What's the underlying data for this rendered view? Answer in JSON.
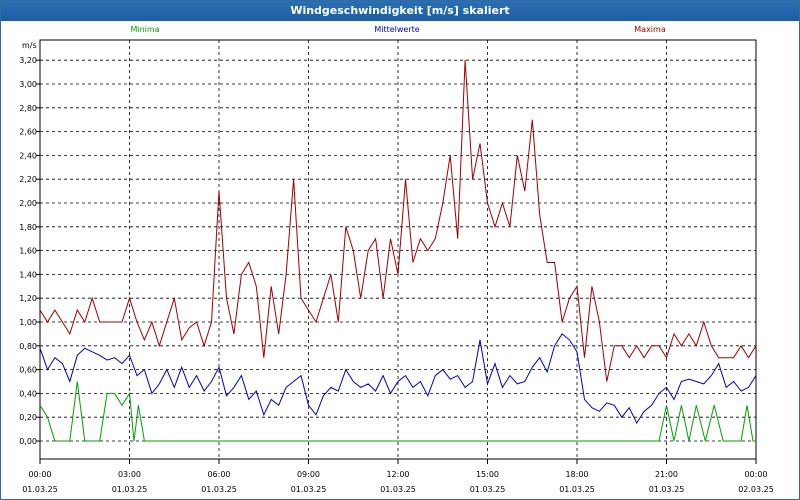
{
  "window": {
    "title": "Windgeschwindigkeit [m/s] skaliert"
  },
  "chart_data": {
    "type": "line",
    "title": "Windgeschwindigkeit [m/s] skaliert",
    "ylabel": "m/s",
    "xlabel": "",
    "ylim": [
      0,
      3.4
    ],
    "xlim": [
      0,
      24
    ],
    "grid": true,
    "yticks": [
      "0,00",
      "0,20",
      "0,40",
      "0,60",
      "0,80",
      "1,00",
      "1,20",
      "1,40",
      "1,60",
      "1,80",
      "2,00",
      "2,20",
      "2,40",
      "2,60",
      "2,80",
      "3,00",
      "3,20"
    ],
    "xticks": [
      {
        "time": "00:00",
        "date": "01.03.25"
      },
      {
        "time": "03:00",
        "date": "01.03.25"
      },
      {
        "time": "06:00",
        "date": "01.03.25"
      },
      {
        "time": "09:00",
        "date": "01.03.25"
      },
      {
        "time": "12:00",
        "date": "01.03.25"
      },
      {
        "time": "15:00",
        "date": "01.03.25"
      },
      {
        "time": "18:00",
        "date": "01.03.25"
      },
      {
        "time": "21:00",
        "date": "01.03.25"
      },
      {
        "time": "00:00",
        "date": "02.03.25"
      }
    ],
    "series": [
      {
        "name": "Minima",
        "color": "#00a000",
        "x": [
          0,
          0.25,
          0.5,
          1,
          1.25,
          1.5,
          2,
          2.25,
          2.5,
          2.75,
          3,
          3.15,
          3.3,
          3.5,
          3.75,
          4,
          5,
          6,
          7,
          8,
          9,
          10,
          11,
          12,
          13,
          14,
          15,
          16,
          17,
          18,
          19,
          20,
          20.75,
          21,
          21.25,
          21.5,
          21.75,
          22,
          22.3,
          22.6,
          22.9,
          23,
          23.5,
          23.7,
          23.9,
          24
        ],
        "values": [
          0.3,
          0.2,
          0,
          0,
          0.5,
          0,
          0,
          0.4,
          0.4,
          0.3,
          0.4,
          0,
          0.3,
          0,
          0,
          0,
          0,
          0,
          0,
          0,
          0,
          0,
          0,
          0,
          0,
          0,
          0,
          0,
          0,
          0,
          0,
          0,
          0,
          0.3,
          0,
          0.3,
          0,
          0.3,
          0,
          0.3,
          0,
          0,
          0,
          0.3,
          0,
          0
        ]
      },
      {
        "name": "Mittelwerte",
        "color": "#0000c0",
        "x": [
          0,
          0.25,
          0.5,
          0.75,
          1,
          1.25,
          1.5,
          1.75,
          2,
          2.25,
          2.5,
          2.75,
          3,
          3.25,
          3.5,
          3.75,
          4,
          4.25,
          4.5,
          4.75,
          5,
          5.25,
          5.5,
          5.75,
          6,
          6.25,
          6.5,
          6.75,
          7,
          7.25,
          7.5,
          7.75,
          8,
          8.25,
          8.5,
          8.75,
          9,
          9.25,
          9.5,
          9.75,
          10,
          10.25,
          10.5,
          10.75,
          11,
          11.25,
          11.5,
          11.75,
          12,
          12.25,
          12.5,
          12.75,
          13,
          13.25,
          13.5,
          13.75,
          14,
          14.25,
          14.5,
          14.75,
          15,
          15.25,
          15.5,
          15.75,
          16,
          16.25,
          16.5,
          16.75,
          17,
          17.25,
          17.5,
          17.75,
          18,
          18.25,
          18.5,
          18.75,
          19,
          19.25,
          19.5,
          19.75,
          20,
          20.25,
          20.5,
          20.75,
          21,
          21.25,
          21.5,
          21.75,
          22,
          22.25,
          22.5,
          22.75,
          23,
          23.25,
          23.5,
          23.75,
          24
        ],
        "values": [
          0.78,
          0.6,
          0.7,
          0.65,
          0.5,
          0.72,
          0.78,
          0.75,
          0.72,
          0.68,
          0.7,
          0.65,
          0.72,
          0.55,
          0.6,
          0.4,
          0.48,
          0.6,
          0.45,
          0.62,
          0.45,
          0.55,
          0.42,
          0.5,
          0.62,
          0.38,
          0.45,
          0.55,
          0.35,
          0.42,
          0.22,
          0.35,
          0.3,
          0.45,
          0.5,
          0.55,
          0.3,
          0.22,
          0.38,
          0.45,
          0.42,
          0.6,
          0.5,
          0.45,
          0.48,
          0.42,
          0.55,
          0.4,
          0.5,
          0.55,
          0.45,
          0.5,
          0.38,
          0.55,
          0.6,
          0.52,
          0.55,
          0.45,
          0.5,
          0.85,
          0.48,
          0.65,
          0.45,
          0.55,
          0.48,
          0.5,
          0.62,
          0.7,
          0.58,
          0.8,
          0.9,
          0.85,
          0.75,
          0.35,
          0.28,
          0.25,
          0.32,
          0.3,
          0.2,
          0.28,
          0.15,
          0.25,
          0.3,
          0.4,
          0.45,
          0.35,
          0.5,
          0.52,
          0.5,
          0.48,
          0.55,
          0.65,
          0.45,
          0.5,
          0.42,
          0.45,
          0.55
        ]
      },
      {
        "name": "Maxima",
        "color": "#a00000",
        "x": [
          0,
          0.25,
          0.5,
          0.75,
          1,
          1.25,
          1.5,
          1.75,
          2,
          2.25,
          2.5,
          2.75,
          3,
          3.25,
          3.5,
          3.75,
          4,
          4.25,
          4.5,
          4.75,
          5,
          5.25,
          5.5,
          5.75,
          6,
          6.25,
          6.5,
          6.75,
          7,
          7.25,
          7.5,
          7.75,
          8,
          8.25,
          8.5,
          8.75,
          9,
          9.25,
          9.5,
          9.75,
          10,
          10.25,
          10.5,
          10.75,
          11,
          11.25,
          11.5,
          11.75,
          12,
          12.25,
          12.5,
          12.75,
          13,
          13.25,
          13.5,
          13.75,
          14,
          14.25,
          14.5,
          14.75,
          15,
          15.25,
          15.5,
          15.75,
          16,
          16.25,
          16.5,
          16.75,
          17,
          17.25,
          17.5,
          17.75,
          18,
          18.25,
          18.5,
          18.75,
          19,
          19.25,
          19.5,
          19.75,
          20,
          20.25,
          20.5,
          20.75,
          21,
          21.25,
          21.5,
          21.75,
          22,
          22.25,
          22.5,
          22.75,
          23,
          23.25,
          23.5,
          23.75,
          24
        ],
        "values": [
          1.1,
          1.0,
          1.1,
          1.0,
          0.9,
          1.1,
          1.0,
          1.2,
          1.0,
          1.0,
          1.0,
          1.0,
          1.2,
          1.0,
          0.85,
          1.0,
          0.8,
          1.0,
          1.2,
          0.85,
          0.95,
          1.0,
          0.8,
          1.0,
          2.1,
          1.2,
          0.9,
          1.4,
          1.5,
          1.3,
          0.7,
          1.3,
          0.9,
          1.4,
          2.2,
          1.2,
          1.1,
          1.0,
          1.2,
          1.4,
          1.0,
          1.8,
          1.6,
          1.2,
          1.6,
          1.7,
          1.2,
          1.7,
          1.4,
          2.2,
          1.5,
          1.7,
          1.6,
          1.7,
          2.0,
          2.4,
          1.7,
          3.2,
          2.2,
          2.5,
          2.0,
          1.8,
          2.0,
          1.8,
          2.4,
          2.1,
          2.7,
          1.9,
          1.5,
          1.5,
          1.0,
          1.2,
          1.3,
          0.7,
          1.3,
          1.0,
          0.5,
          0.8,
          0.8,
          0.7,
          0.8,
          0.7,
          0.8,
          0.8,
          0.7,
          0.9,
          0.8,
          0.9,
          0.8,
          1.0,
          0.8,
          0.7,
          0.7,
          0.7,
          0.8,
          0.7,
          0.8
        ]
      }
    ]
  }
}
